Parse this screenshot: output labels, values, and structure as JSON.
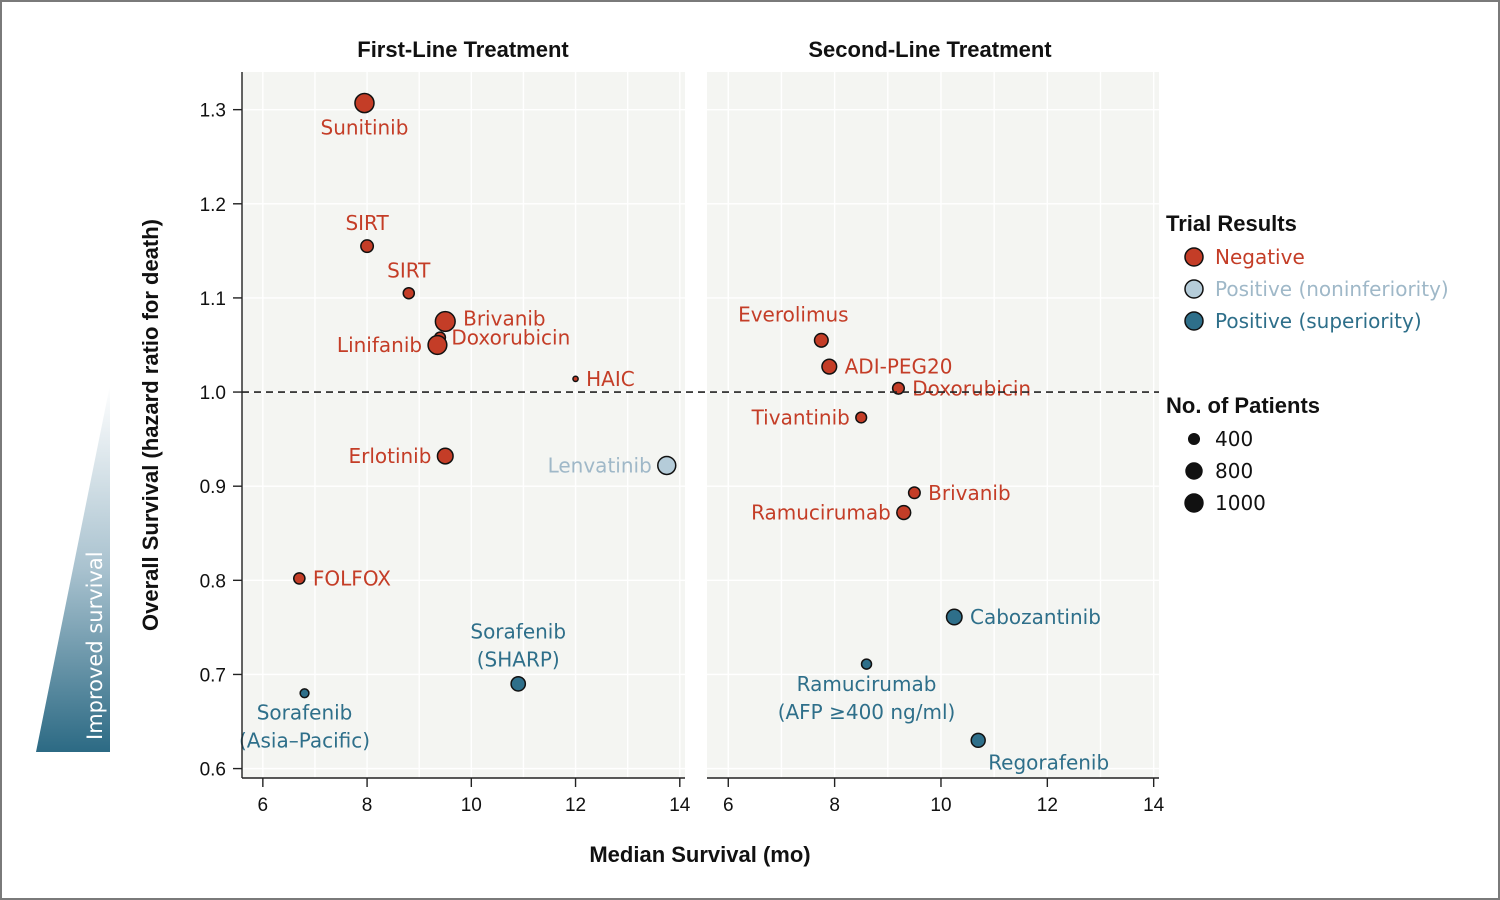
{
  "chart_data": {
    "type": "scatter",
    "y_axis": {
      "label": "Overall Survival (hazard ratio for death)",
      "ylim": [
        0.59,
        1.34
      ],
      "ticks": [
        "0.6",
        "0.7",
        "0.8",
        "0.9",
        "1.0",
        "1.1",
        "1.2",
        "1.3"
      ],
      "reference_line": 1.0
    },
    "x_axis": {
      "label": "Median Survival (mo)",
      "xlim": [
        5.6,
        14.1
      ],
      "ticks": [
        "6",
        "8",
        "10",
        "12",
        "14"
      ]
    },
    "annotation": "Improved survival",
    "panels": [
      {
        "title": "First-Line Treatment",
        "points": [
          {
            "label": "Sunitinib",
            "x": 7.95,
            "y": 1.307,
            "patients": 1070,
            "result": "negative",
            "anchor": "below"
          },
          {
            "label": "SIRT",
            "x": 8.0,
            "y": 1.155,
            "patients": 460,
            "result": "negative",
            "anchor": "above"
          },
          {
            "label": "SIRT",
            "x": 8.8,
            "y": 1.105,
            "patients": 360,
            "result": "negative",
            "anchor": "above"
          },
          {
            "label": "Brivanib",
            "x": 9.5,
            "y": 1.075,
            "patients": 1150,
            "result": "negative",
            "anchor": "right-up"
          },
          {
            "label": "Doxorubicin",
            "x": 9.4,
            "y": 1.058,
            "patients": 340,
            "result": "negative",
            "anchor": "right-down"
          },
          {
            "label": "Linifanib",
            "x": 9.35,
            "y": 1.05,
            "patients": 1035,
            "result": "negative",
            "anchor": "left"
          },
          {
            "label": "HAIC",
            "x": 12.0,
            "y": 1.014,
            "patients": 80,
            "result": "negative",
            "anchor": "right"
          },
          {
            "label": "Erlotinib",
            "x": 9.5,
            "y": 0.932,
            "patients": 720,
            "result": "negative",
            "anchor": "left"
          },
          {
            "label": "Lenvatinib",
            "x": 13.75,
            "y": 0.922,
            "patients": 950,
            "result": "positive-noninferiority",
            "anchor": "left"
          },
          {
            "label": "FOLFOX",
            "x": 6.7,
            "y": 0.802,
            "patients": 370,
            "result": "negative",
            "anchor": "right"
          },
          {
            "label": "Sorafenib (SHARP)",
            "lines": [
              "Sorafenib",
              "(SHARP)"
            ],
            "x": 10.9,
            "y": 0.69,
            "patients": 600,
            "result": "positive-superiority",
            "anchor": "above"
          },
          {
            "label": "Sorafenib (Asia–Pacific)",
            "lines": [
              "Sorafenib",
              "(Asia–Pacific)"
            ],
            "x": 6.8,
            "y": 0.68,
            "patients": 226,
            "result": "positive-superiority",
            "anchor": "below"
          }
        ]
      },
      {
        "title": "Second-Line Treatment",
        "points": [
          {
            "label": "Everolimus",
            "x": 7.75,
            "y": 1.055,
            "patients": 546,
            "result": "negative",
            "anchor": "above-left"
          },
          {
            "label": "ADI-PEG20",
            "x": 7.9,
            "y": 1.027,
            "patients": 635,
            "result": "negative",
            "anchor": "right"
          },
          {
            "label": "Doxorubicin",
            "x": 9.2,
            "y": 1.004,
            "patients": 400,
            "result": "negative",
            "anchor": "right"
          },
          {
            "label": "Tivantinib",
            "x": 8.5,
            "y": 0.973,
            "patients": 340,
            "result": "negative",
            "anchor": "left"
          },
          {
            "label": "Brivanib",
            "x": 9.5,
            "y": 0.893,
            "patients": 395,
            "result": "negative",
            "anchor": "right"
          },
          {
            "label": "Ramucirumab",
            "x": 9.3,
            "y": 0.872,
            "patients": 565,
            "result": "negative",
            "anchor": "left"
          },
          {
            "label": "Cabozantinib",
            "x": 10.25,
            "y": 0.761,
            "patients": 707,
            "result": "positive-superiority",
            "anchor": "right"
          },
          {
            "label": "Ramucirumab (AFP ≥400 ng/ml)",
            "lines": [
              "Ramucirumab",
              "(AFP ≥400 ng/ml)"
            ],
            "x": 8.6,
            "y": 0.711,
            "patients": 292,
            "result": "positive-superiority",
            "anchor": "below"
          },
          {
            "label": "Regorafenib",
            "x": 10.7,
            "y": 0.63,
            "patients": 573,
            "result": "positive-superiority",
            "anchor": "below-right"
          }
        ]
      }
    ],
    "legend": {
      "results_title": "Trial Results",
      "results": [
        {
          "key": "negative",
          "label": "Negative",
          "color": "#c43d27"
        },
        {
          "key": "positive-noninferiority",
          "label": "Positive (noninferiority)",
          "color": "#b5ccd9"
        },
        {
          "key": "positive-superiority",
          "label": "Positive (superiority)",
          "color": "#2e6f8a"
        }
      ],
      "size_title": "No. of Patients",
      "sizes": [
        {
          "label": "400",
          "patients": 400
        },
        {
          "label": "800",
          "patients": 800
        },
        {
          "label": "1000",
          "patients": 1000
        }
      ]
    }
  },
  "colors": {
    "negative_text": "#c43d27",
    "noninferiority_text": "#9fb8c8",
    "superiority_text": "#2e6f8a",
    "panel_bg": "#f4f5f2",
    "grid": "#ffffff"
  }
}
